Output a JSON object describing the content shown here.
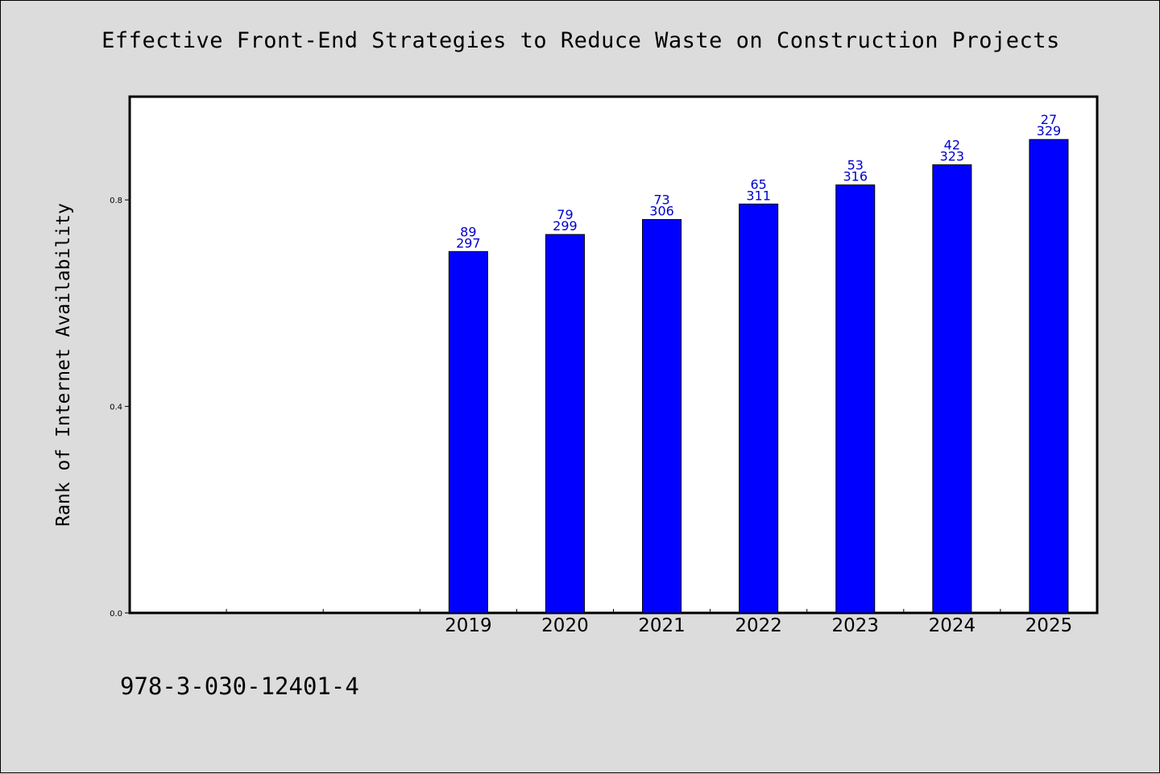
{
  "chart_data": {
    "type": "bar",
    "title": "Effective Front-End Strategies to Reduce Waste on Construction Projects",
    "xlabel": "",
    "ylabel": "Rank of Internet Availability",
    "ylim": [
      0,
      1.0
    ],
    "yticks": [
      "0.0",
      "0.4",
      "0.8"
    ],
    "slots": 10,
    "categories": [
      "2019",
      "2020",
      "2021",
      "2022",
      "2023",
      "2024",
      "2025"
    ],
    "first_slot": 3,
    "values": [
      0.7,
      0.733,
      0.762,
      0.792,
      0.829,
      0.868,
      0.917
    ],
    "label_top": [
      "89",
      "79",
      "73",
      "65",
      "53",
      "42",
      "27"
    ],
    "label_bottom": [
      "297",
      "299",
      "306",
      "311",
      "316",
      "323",
      "329"
    ],
    "bar_color": "#0000ff",
    "label_color": "#0000cc",
    "grid": false,
    "legend": "none"
  },
  "footer": {
    "code": "978-3-030-12401-4"
  }
}
